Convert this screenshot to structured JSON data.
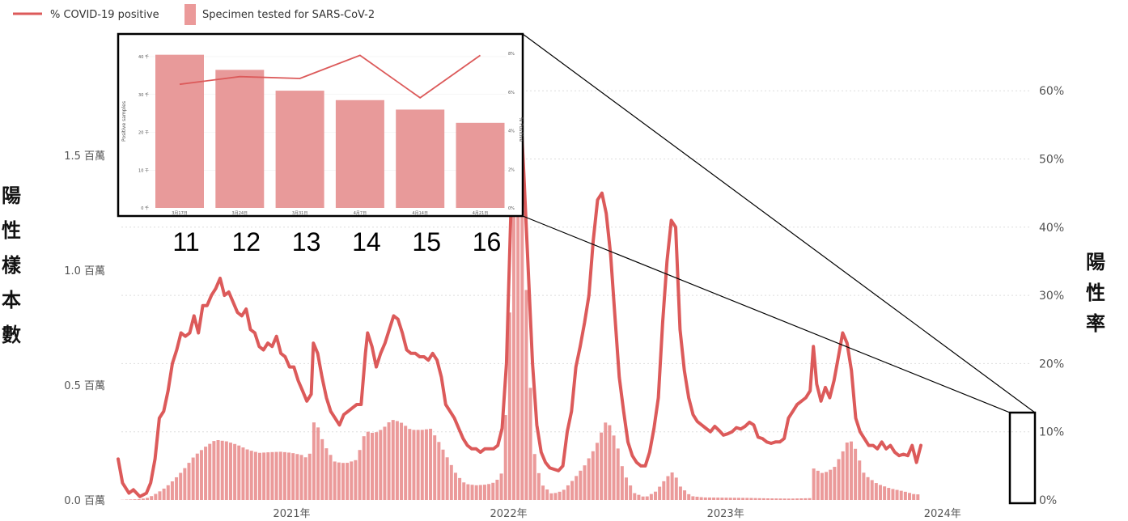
{
  "legend": {
    "line_label": "% COVID-19 positive",
    "bar_label": "Specimen tested for SARS-CoV-2"
  },
  "colors": {
    "line": "#dc5a5a",
    "bar": "#eb9a9a",
    "inset_bar": "#e89a9a",
    "grid": "#dddddd"
  },
  "axis_titles": {
    "left": [
      "陽",
      "性",
      "樣",
      "本",
      "數"
    ],
    "right": [
      "陽",
      "性",
      "率"
    ]
  },
  "chart_data": [
    {
      "type": "bar",
      "series": [
        {
          "name": "% COVID-19 positive",
          "type": "line",
          "axis": "right"
        },
        {
          "name": "Specimen tested for SARS-CoV-2",
          "type": "bar",
          "axis": "left"
        }
      ],
      "y_left": {
        "range": [
          0,
          2000000
        ],
        "ticks": [
          {
            "value": 0,
            "label": "0.0 百萬"
          },
          {
            "value": 500000,
            "label": "0.5 百萬"
          },
          {
            "value": 1000000,
            "label": "1.0 百萬"
          },
          {
            "value": 1500000,
            "label": "1.5 百萬"
          }
        ]
      },
      "y_right": {
        "range": [
          0,
          66
        ],
        "ticks": [
          {
            "value": 0,
            "label": "0%"
          },
          {
            "value": 10,
            "label": "10%"
          },
          {
            "value": 20,
            "label": "20%"
          },
          {
            "value": 30,
            "label": "30%"
          },
          {
            "value": 40,
            "label": "40%"
          },
          {
            "value": 50,
            "label": "50%"
          },
          {
            "value": 60,
            "label": "60%"
          }
        ]
      },
      "x_range": [
        2020.2,
        2024.4
      ],
      "x_ticks": [
        {
          "value": 2021.0,
          "label": "2021年"
        },
        {
          "value": 2022.0,
          "label": "2022年"
        },
        {
          "value": 2023.0,
          "label": "2023年"
        },
        {
          "value": 2024.0,
          "label": "2024年"
        }
      ],
      "line_points": [
        [
          2020.2,
          6
        ],
        [
          2020.22,
          2.5
        ],
        [
          2020.25,
          1
        ],
        [
          2020.27,
          1.5
        ],
        [
          2020.3,
          0.5
        ],
        [
          2020.33,
          1
        ],
        [
          2020.35,
          2.5
        ],
        [
          2020.37,
          6
        ],
        [
          2020.39,
          12
        ],
        [
          2020.41,
          13
        ],
        [
          2020.43,
          16
        ],
        [
          2020.45,
          20
        ],
        [
          2020.47,
          22
        ],
        [
          2020.49,
          24.5
        ],
        [
          2020.51,
          24
        ],
        [
          2020.53,
          24.5
        ],
        [
          2020.55,
          27
        ],
        [
          2020.57,
          24.5
        ],
        [
          2020.59,
          28.5
        ],
        [
          2020.61,
          28.5
        ],
        [
          2020.63,
          30
        ],
        [
          2020.65,
          31
        ],
        [
          2020.67,
          32.5
        ],
        [
          2020.69,
          30
        ],
        [
          2020.71,
          30.5
        ],
        [
          2020.73,
          29
        ],
        [
          2020.75,
          27.5
        ],
        [
          2020.77,
          27
        ],
        [
          2020.79,
          28
        ],
        [
          2020.81,
          25
        ],
        [
          2020.83,
          24.5
        ],
        [
          2020.85,
          22.5
        ],
        [
          2020.87,
          22
        ],
        [
          2020.89,
          23
        ],
        [
          2020.91,
          22.5
        ],
        [
          2020.93,
          24
        ],
        [
          2020.95,
          21.5
        ],
        [
          2020.97,
          21
        ],
        [
          2020.99,
          19.5
        ],
        [
          2021.01,
          19.5
        ],
        [
          2021.03,
          17.5
        ],
        [
          2021.05,
          16
        ],
        [
          2021.07,
          14.5
        ],
        [
          2021.09,
          15.5
        ],
        [
          2021.1,
          23
        ],
        [
          2021.12,
          21.5
        ],
        [
          2021.14,
          18
        ],
        [
          2021.16,
          15
        ],
        [
          2021.18,
          13
        ],
        [
          2021.2,
          12
        ],
        [
          2021.22,
          11
        ],
        [
          2021.24,
          12.5
        ],
        [
          2021.26,
          13
        ],
        [
          2021.28,
          13.5
        ],
        [
          2021.3,
          14
        ],
        [
          2021.32,
          14
        ],
        [
          2021.34,
          21.5
        ],
        [
          2021.35,
          24.5
        ],
        [
          2021.37,
          22.5
        ],
        [
          2021.39,
          19.5
        ],
        [
          2021.41,
          21.5
        ],
        [
          2021.43,
          23
        ],
        [
          2021.45,
          25
        ],
        [
          2021.47,
          27
        ],
        [
          2021.49,
          26.5
        ],
        [
          2021.51,
          24.5
        ],
        [
          2021.53,
          22
        ],
        [
          2021.55,
          21.5
        ],
        [
          2021.57,
          21.5
        ],
        [
          2021.59,
          21
        ],
        [
          2021.61,
          21
        ],
        [
          2021.63,
          20.5
        ],
        [
          2021.65,
          21.5
        ],
        [
          2021.67,
          20.5
        ],
        [
          2021.69,
          18
        ],
        [
          2021.71,
          14
        ],
        [
          2021.73,
          13
        ],
        [
          2021.75,
          12
        ],
        [
          2021.77,
          10.5
        ],
        [
          2021.79,
          9
        ],
        [
          2021.81,
          8
        ],
        [
          2021.83,
          7.5
        ],
        [
          2021.85,
          7.5
        ],
        [
          2021.87,
          7
        ],
        [
          2021.89,
          7.5
        ],
        [
          2021.91,
          7.5
        ],
        [
          2021.93,
          7.5
        ],
        [
          2021.95,
          8
        ],
        [
          2021.97,
          10.5
        ],
        [
          2021.99,
          20
        ],
        [
          2022.01,
          42
        ],
        [
          2022.03,
          58
        ],
        [
          2022.05,
          60.5
        ],
        [
          2022.07,
          48
        ],
        [
          2022.09,
          34
        ],
        [
          2022.11,
          20
        ],
        [
          2022.13,
          11
        ],
        [
          2022.15,
          7
        ],
        [
          2022.17,
          5.5
        ],
        [
          2022.19,
          4.7
        ],
        [
          2022.21,
          4.5
        ],
        [
          2022.23,
          4.3
        ],
        [
          2022.25,
          5
        ],
        [
          2022.27,
          10
        ],
        [
          2022.29,
          13
        ],
        [
          2022.31,
          19.5
        ],
        [
          2022.33,
          22.5
        ],
        [
          2022.35,
          26
        ],
        [
          2022.37,
          30
        ],
        [
          2022.39,
          38
        ],
        [
          2022.41,
          44
        ],
        [
          2022.43,
          45
        ],
        [
          2022.45,
          42
        ],
        [
          2022.47,
          36
        ],
        [
          2022.49,
          27
        ],
        [
          2022.51,
          18
        ],
        [
          2022.53,
          13
        ],
        [
          2022.55,
          8.5
        ],
        [
          2022.57,
          6.5
        ],
        [
          2022.59,
          5.5
        ],
        [
          2022.61,
          5
        ],
        [
          2022.63,
          5
        ],
        [
          2022.65,
          7
        ],
        [
          2022.67,
          10.5
        ],
        [
          2022.69,
          15
        ],
        [
          2022.71,
          26
        ],
        [
          2022.73,
          35
        ],
        [
          2022.75,
          41
        ],
        [
          2022.77,
          40
        ],
        [
          2022.79,
          25
        ],
        [
          2022.81,
          19
        ],
        [
          2022.83,
          15
        ],
        [
          2022.85,
          12.5
        ],
        [
          2022.87,
          11.5
        ],
        [
          2022.89,
          11
        ],
        [
          2022.91,
          10.5
        ],
        [
          2022.93,
          10
        ],
        [
          2022.95,
          10.8
        ],
        [
          2022.97,
          10.2
        ],
        [
          2022.99,
          9.5
        ],
        [
          2023.01,
          9.7
        ],
        [
          2023.03,
          10
        ],
        [
          2023.05,
          10.6
        ],
        [
          2023.07,
          10.4
        ],
        [
          2023.09,
          10.8
        ],
        [
          2023.11,
          11.4
        ],
        [
          2023.13,
          11
        ],
        [
          2023.15,
          9.2
        ],
        [
          2023.17,
          9
        ],
        [
          2023.19,
          8.5
        ],
        [
          2023.21,
          8.3
        ],
        [
          2023.23,
          8.5
        ],
        [
          2023.25,
          8.5
        ],
        [
          2023.27,
          9
        ],
        [
          2023.29,
          12
        ],
        [
          2023.31,
          13
        ],
        [
          2023.33,
          14
        ],
        [
          2023.35,
          14.5
        ],
        [
          2023.37,
          15
        ],
        [
          2023.39,
          16
        ],
        [
          2023.405,
          22.5
        ],
        [
          2023.42,
          17
        ],
        [
          2023.44,
          14.5
        ],
        [
          2023.46,
          16.5
        ],
        [
          2023.48,
          15
        ],
        [
          2023.5,
          17.5
        ],
        [
          2023.52,
          21
        ],
        [
          2023.54,
          24.5
        ],
        [
          2023.56,
          23
        ],
        [
          2023.58,
          19
        ],
        [
          2023.6,
          12
        ],
        [
          2023.62,
          10
        ],
        [
          2023.64,
          9
        ],
        [
          2023.66,
          8
        ],
        [
          2023.68,
          8
        ],
        [
          2023.7,
          7.5
        ],
        [
          2023.72,
          8.5
        ],
        [
          2023.74,
          7.5
        ],
        [
          2023.76,
          8
        ],
        [
          2023.78,
          7
        ],
        [
          2023.8,
          6.5
        ],
        [
          2023.82,
          6.7
        ],
        [
          2023.84,
          6.5
        ],
        [
          2023.86,
          8
        ],
        [
          2023.88,
          5.5
        ],
        [
          2023.9,
          8
        ]
      ],
      "bar_points": [
        [
          2020.2,
          0
        ],
        [
          2020.25,
          2000
        ],
        [
          2020.3,
          4000
        ],
        [
          2020.34,
          10000
        ],
        [
          2020.38,
          30000
        ],
        [
          2020.42,
          55000
        ],
        [
          2020.46,
          90000
        ],
        [
          2020.5,
          130000
        ],
        [
          2020.55,
          190000
        ],
        [
          2020.6,
          230000
        ],
        [
          2020.65,
          262000
        ],
        [
          2020.7,
          255000
        ],
        [
          2020.75,
          240000
        ],
        [
          2020.8,
          218000
        ],
        [
          2020.85,
          205000
        ],
        [
          2020.9,
          208000
        ],
        [
          2020.95,
          210000
        ],
        [
          2021.0,
          205000
        ],
        [
          2021.05,
          195000
        ],
        [
          2021.08,
          175000
        ],
        [
          2021.1,
          340000
        ],
        [
          2021.12,
          320000
        ],
        [
          2021.15,
          240000
        ],
        [
          2021.2,
          165000
        ],
        [
          2021.25,
          160000
        ],
        [
          2021.3,
          175000
        ],
        [
          2021.34,
          300000
        ],
        [
          2021.38,
          290000
        ],
        [
          2021.42,
          310000
        ],
        [
          2021.46,
          350000
        ],
        [
          2021.5,
          340000
        ],
        [
          2021.55,
          305000
        ],
        [
          2021.6,
          305000
        ],
        [
          2021.64,
          310000
        ],
        [
          2021.68,
          250000
        ],
        [
          2021.72,
          180000
        ],
        [
          2021.76,
          110000
        ],
        [
          2021.8,
          70000
        ],
        [
          2021.85,
          64000
        ],
        [
          2021.9,
          67000
        ],
        [
          2021.94,
          78000
        ],
        [
          2021.97,
          120000
        ],
        [
          2022.0,
          600000
        ],
        [
          2022.02,
          1500000
        ],
        [
          2022.04,
          1750000
        ],
        [
          2022.06,
          1300000
        ],
        [
          2022.08,
          950000
        ],
        [
          2022.1,
          500000
        ],
        [
          2022.12,
          200000
        ],
        [
          2022.15,
          70000
        ],
        [
          2022.2,
          26000
        ],
        [
          2022.25,
          40000
        ],
        [
          2022.3,
          90000
        ],
        [
          2022.35,
          150000
        ],
        [
          2022.4,
          230000
        ],
        [
          2022.43,
          300000
        ],
        [
          2022.45,
          345000
        ],
        [
          2022.47,
          320000
        ],
        [
          2022.5,
          240000
        ],
        [
          2022.53,
          120000
        ],
        [
          2022.58,
          30000
        ],
        [
          2022.63,
          11000
        ],
        [
          2022.68,
          38000
        ],
        [
          2022.73,
          100000
        ],
        [
          2022.76,
          125000
        ],
        [
          2022.79,
          60000
        ],
        [
          2022.84,
          17000
        ],
        [
          2022.9,
          11000
        ],
        [
          2023.0,
          10000
        ],
        [
          2023.1,
          9000
        ],
        [
          2023.2,
          7000
        ],
        [
          2023.3,
          6000
        ],
        [
          2023.39,
          8000
        ],
        [
          2023.4,
          140000
        ],
        [
          2023.45,
          115000
        ],
        [
          2023.5,
          140000
        ],
        [
          2023.54,
          210000
        ],
        [
          2023.57,
          270000
        ],
        [
          2023.6,
          220000
        ],
        [
          2023.64,
          110000
        ],
        [
          2023.7,
          70000
        ],
        [
          2023.76,
          50000
        ],
        [
          2023.82,
          38000
        ],
        [
          2023.87,
          25000
        ],
        [
          2023.9,
          24000
        ]
      ],
      "bar_step": 0.0192
    },
    {
      "type": "bar",
      "categories": [
        "3月17日",
        "3月24日",
        "3月31日",
        "4月7日",
        "4月14日",
        "4月21日"
      ],
      "values": [
        40.5,
        36.5,
        31,
        28.5,
        26,
        22.5
      ],
      "line_values": [
        6.4,
        6.8,
        6.7,
        7.9,
        5.7,
        7.9
      ],
      "y_left_ticks": [
        "0 千",
        "10 千",
        "20 千",
        "30 千",
        "40 千"
      ],
      "y_right_ticks": [
        "0%",
        "2%",
        "4%",
        "6%",
        "8%"
      ],
      "y_left_label": "Positive samples",
      "y_right_label": "% Positive",
      "week_labels": [
        "11",
        "12",
        "13",
        "14",
        "15",
        "16"
      ]
    }
  ]
}
